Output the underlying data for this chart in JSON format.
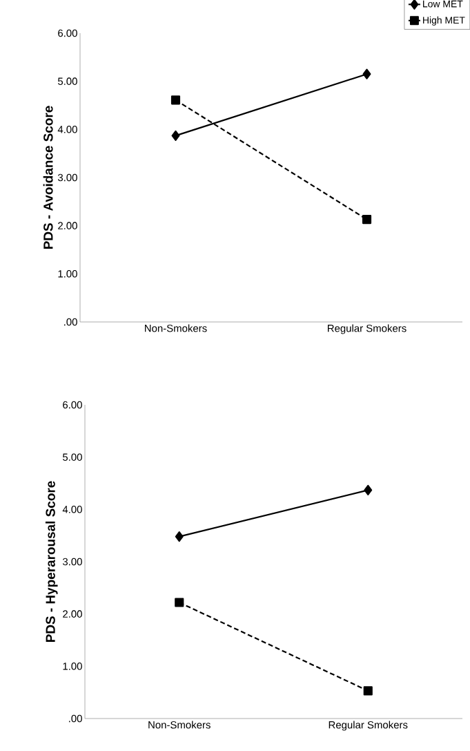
{
  "chart_data": [
    {
      "type": "line",
      "ylabel": "PDS - Avoidance Score",
      "categories": [
        "Non-Smokers",
        "Regular Smokers"
      ],
      "ylim": [
        0,
        6
      ],
      "yticks": [
        {
          "value": 0,
          "label": ".00"
        },
        {
          "value": 1,
          "label": "1.00"
        },
        {
          "value": 2,
          "label": "2.00"
        },
        {
          "value": 3,
          "label": "3.00"
        },
        {
          "value": 4,
          "label": "4.00"
        },
        {
          "value": 5,
          "label": "5.00"
        },
        {
          "value": 6,
          "label": "6.00"
        }
      ],
      "legend": "top right",
      "grid": false,
      "series": [
        {
          "name": "Low MET",
          "color": "#000000",
          "values": [
            3.87,
            5.15
          ],
          "marker": "diamond",
          "line_style": "solid"
        },
        {
          "name": "High MET",
          "color": "#000000",
          "values": [
            4.61,
            2.13
          ],
          "marker": "square",
          "line_style": "dashed"
        }
      ]
    },
    {
      "type": "line",
      "ylabel": "PDS - Hyperarousal Score",
      "categories": [
        "Non-Smokers",
        "Regular Smokers"
      ],
      "ylim": [
        0,
        6
      ],
      "yticks": [
        {
          "value": 0,
          "label": ".00"
        },
        {
          "value": 1,
          "label": "1.00"
        },
        {
          "value": 2,
          "label": "2.00"
        },
        {
          "value": 3,
          "label": "3.00"
        },
        {
          "value": 4,
          "label": "4.00"
        },
        {
          "value": 5,
          "label": "5.00"
        },
        {
          "value": 6,
          "label": "6.00"
        }
      ],
      "grid": false,
      "series": [
        {
          "color": "#000000",
          "values": [
            3.48,
            4.37
          ],
          "marker": "diamond",
          "line_style": "solid"
        },
        {
          "color": "#000000",
          "values": [
            2.22,
            0.53
          ],
          "marker": "square",
          "line_style": "dashed"
        }
      ]
    }
  ]
}
